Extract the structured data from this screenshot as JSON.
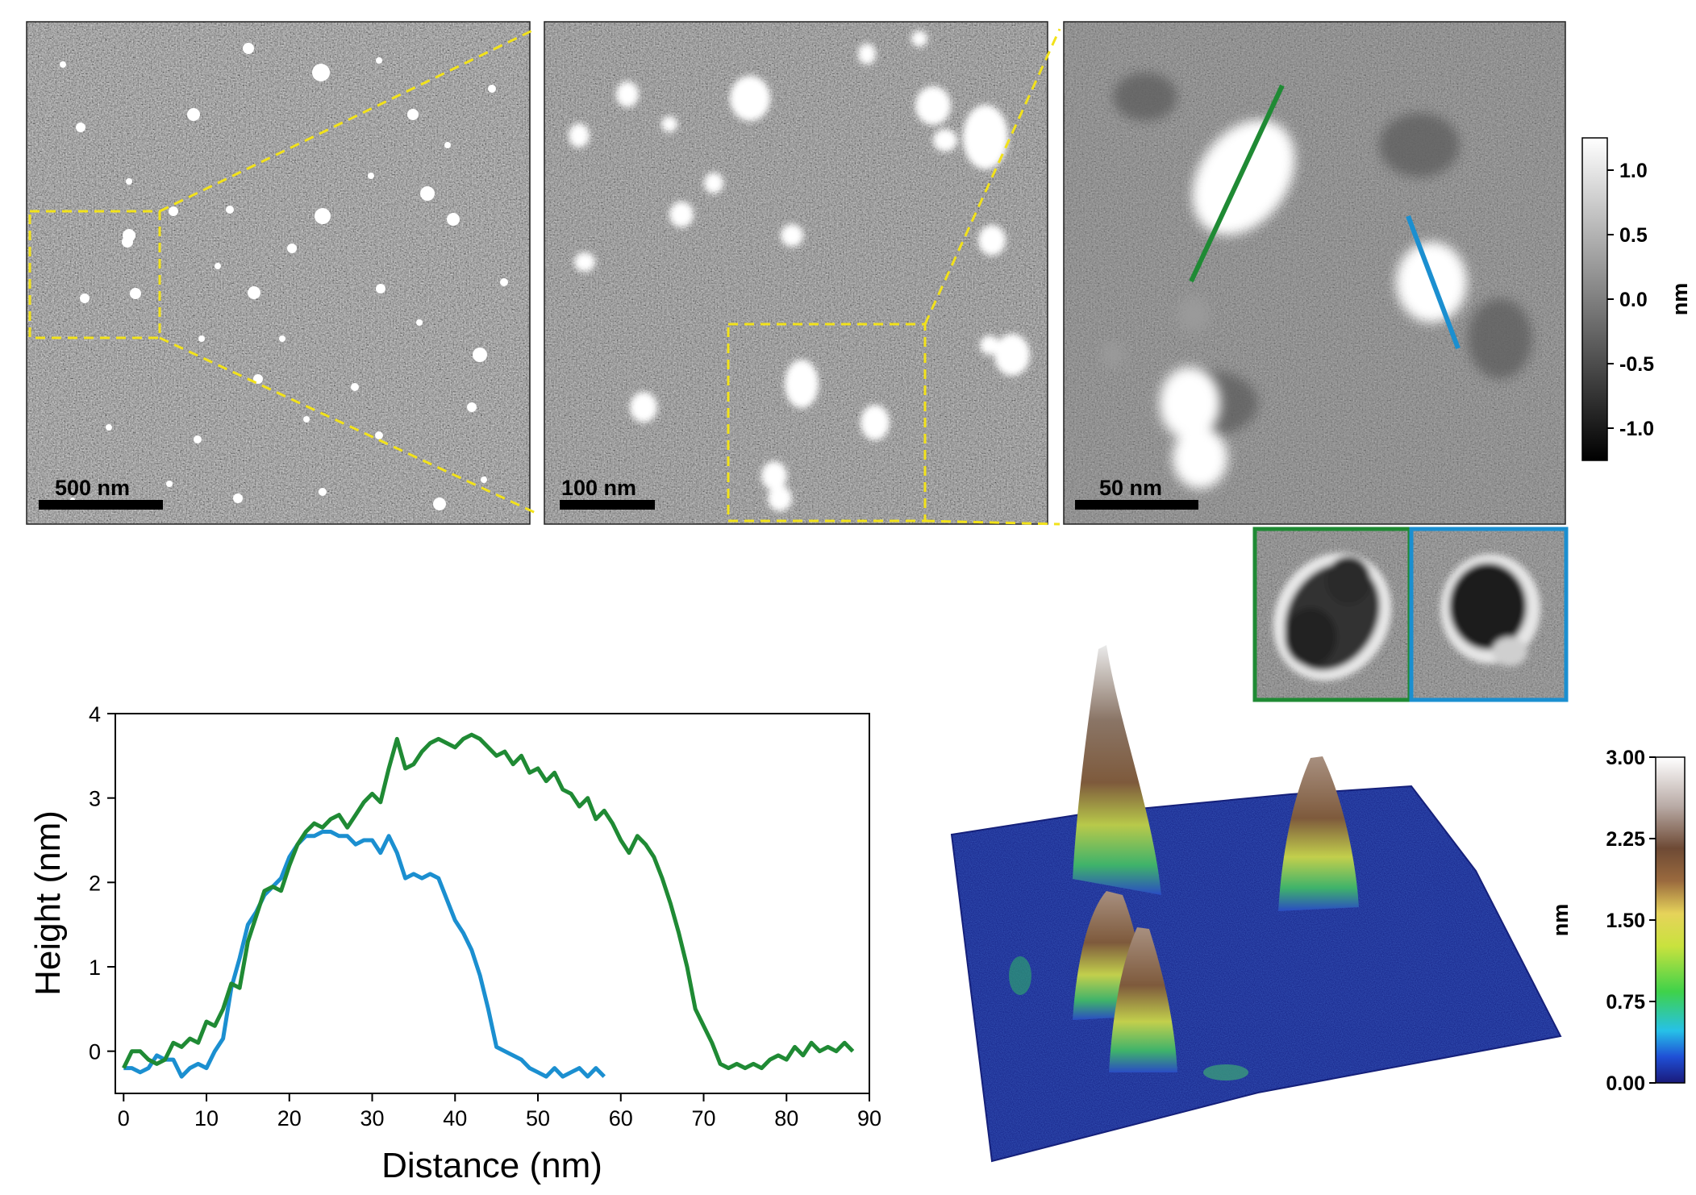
{
  "afm_panels": {
    "scale_bars": [
      "500 nm",
      "100 nm",
      "50 nm"
    ],
    "profile_colors": {
      "green": "#1f8a34",
      "blue": "#1b8fd0"
    },
    "zoom_box_color": "#f2e21a"
  },
  "gray_colorbar": {
    "unit": "nm",
    "ticks": [
      "1.0",
      "0.5",
      "0.0",
      "-0.5",
      "-1.0"
    ],
    "tick_values": [
      1.0,
      0.5,
      0.0,
      -0.5,
      -1.0
    ],
    "range": [
      -1.25,
      1.25
    ]
  },
  "height_colorbar": {
    "unit": "nm",
    "ticks": [
      "3.00",
      "2.25",
      "1.50",
      "0.75",
      "0.00"
    ],
    "tick_values": [
      3.0,
      2.25,
      1.5,
      0.75,
      0.0
    ],
    "range": [
      0,
      3.0
    ]
  },
  "chart_data": {
    "type": "line",
    "title": "",
    "xlabel": "Distance (nm)",
    "ylabel": "Height (nm)",
    "xlim": [
      -1,
      90
    ],
    "ylim": [
      -0.5,
      4
    ],
    "xticks": [
      "0",
      "10",
      "20",
      "30",
      "40",
      "50",
      "60",
      "70",
      "80",
      "90"
    ],
    "xtick_values": [
      0,
      10,
      20,
      30,
      40,
      50,
      60,
      70,
      80,
      90
    ],
    "yticks": [
      "0",
      "1",
      "2",
      "3",
      "4"
    ],
    "ytick_values": [
      0,
      1,
      2,
      3,
      4
    ],
    "grid": false,
    "legend": "none",
    "series": [
      {
        "color": "#1f8a34",
        "x": [
          0,
          1,
          2,
          3,
          4,
          5,
          6,
          7,
          8,
          9,
          10,
          11,
          12,
          13,
          14,
          15,
          16,
          17,
          18,
          19,
          20,
          21,
          22,
          23,
          24,
          25,
          26,
          27,
          28,
          29,
          30,
          31,
          32,
          33,
          34,
          35,
          36,
          37,
          38,
          39,
          40,
          41,
          42,
          43,
          44,
          45,
          46,
          47,
          48,
          49,
          50,
          51,
          52,
          53,
          54,
          55,
          56,
          57,
          58,
          59,
          60,
          61,
          62,
          63,
          64,
          65,
          66,
          67,
          68,
          69,
          70,
          71,
          72,
          73,
          74,
          75,
          76,
          77,
          78,
          79,
          80,
          81,
          82,
          83,
          84,
          85,
          86,
          87,
          88
        ],
        "y": [
          -0.2,
          0.0,
          0.0,
          -0.1,
          -0.15,
          -0.1,
          0.1,
          0.05,
          0.15,
          0.1,
          0.35,
          0.3,
          0.5,
          0.8,
          0.75,
          1.3,
          1.6,
          1.9,
          1.95,
          1.9,
          2.2,
          2.45,
          2.6,
          2.7,
          2.65,
          2.75,
          2.8,
          2.65,
          2.8,
          2.95,
          3.05,
          2.95,
          3.35,
          3.7,
          3.35,
          3.4,
          3.55,
          3.65,
          3.7,
          3.65,
          3.6,
          3.7,
          3.75,
          3.7,
          3.6,
          3.5,
          3.55,
          3.4,
          3.5,
          3.3,
          3.35,
          3.2,
          3.3,
          3.1,
          3.05,
          2.9,
          3.0,
          2.75,
          2.85,
          2.7,
          2.5,
          2.35,
          2.55,
          2.45,
          2.3,
          2.05,
          1.75,
          1.4,
          1.0,
          0.5,
          0.3,
          0.1,
          -0.15,
          -0.2,
          -0.15,
          -0.2,
          -0.15,
          -0.2,
          -0.1,
          -0.05,
          -0.1,
          0.05,
          -0.05,
          0.1,
          0.0,
          0.05,
          0.0,
          0.1,
          0.0
        ]
      },
      {
        "color": "#1b8fd0",
        "x": [
          0,
          1,
          2,
          3,
          4,
          5,
          6,
          7,
          8,
          9,
          10,
          11,
          12,
          13,
          14,
          15,
          16,
          17,
          18,
          19,
          20,
          21,
          22,
          23,
          24,
          25,
          26,
          27,
          28,
          29,
          30,
          31,
          32,
          33,
          34,
          35,
          36,
          37,
          38,
          39,
          40,
          41,
          42,
          43,
          44,
          45,
          46,
          47,
          48,
          49,
          50,
          51,
          52,
          53,
          54,
          55,
          56,
          57,
          58
        ],
        "y": [
          -0.2,
          -0.2,
          -0.25,
          -0.2,
          -0.05,
          -0.1,
          -0.1,
          -0.3,
          -0.2,
          -0.15,
          -0.2,
          0.0,
          0.15,
          0.75,
          1.1,
          1.5,
          1.65,
          1.85,
          1.95,
          2.05,
          2.3,
          2.45,
          2.55,
          2.55,
          2.6,
          2.6,
          2.55,
          2.55,
          2.45,
          2.5,
          2.5,
          2.35,
          2.55,
          2.35,
          2.05,
          2.1,
          2.05,
          2.1,
          2.05,
          1.8,
          1.55,
          1.4,
          1.2,
          0.9,
          0.5,
          0.05,
          0.0,
          -0.05,
          -0.1,
          -0.2,
          -0.25,
          -0.3,
          -0.2,
          -0.3,
          -0.25,
          -0.2,
          -0.3,
          -0.2,
          -0.3
        ]
      }
    ]
  }
}
